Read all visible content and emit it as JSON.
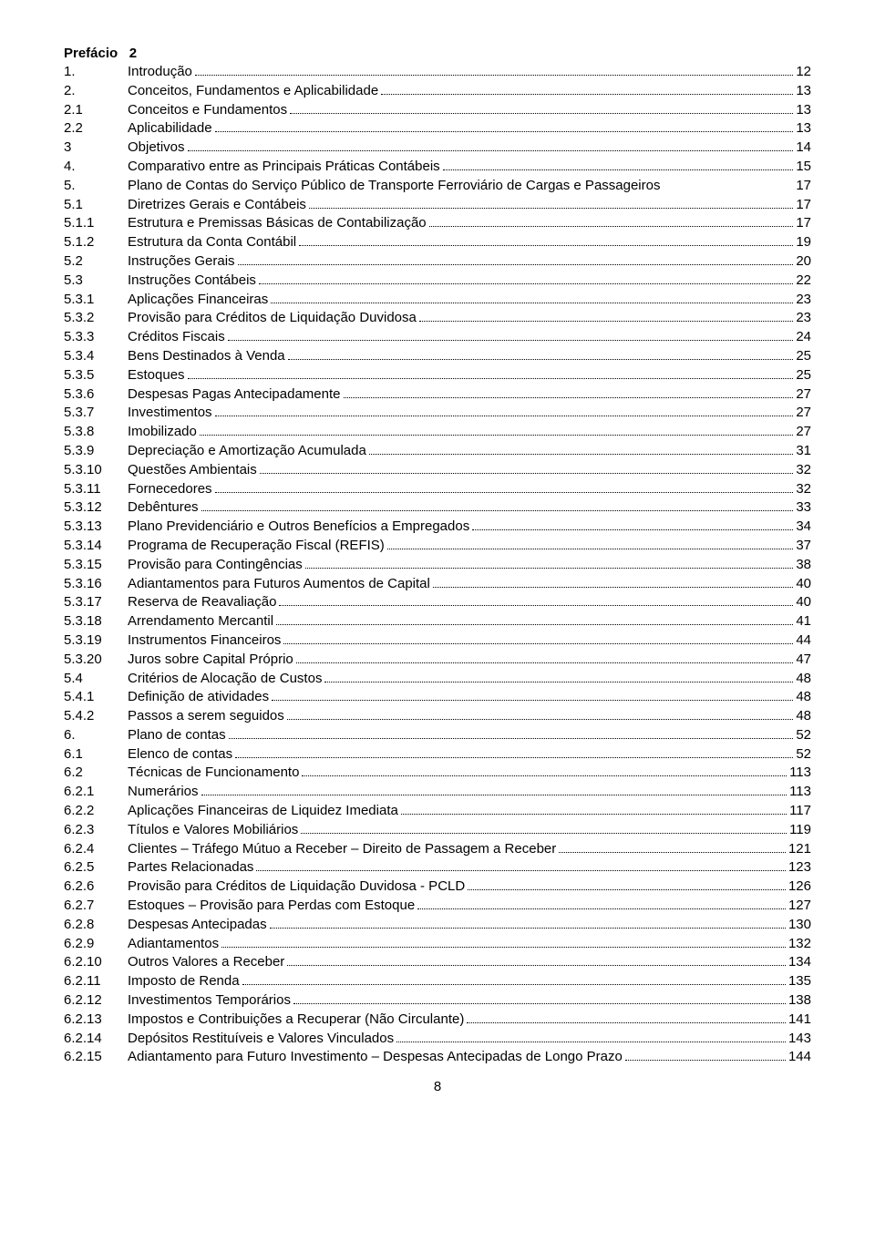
{
  "preface": {
    "label": "Prefácio",
    "page": "2"
  },
  "entries": [
    {
      "num": "1.",
      "title": "Introdução",
      "page": "12"
    },
    {
      "num": "2.",
      "title": "Conceitos, Fundamentos e Aplicabilidade",
      "page": "13"
    },
    {
      "num": "2.1",
      "title": "Conceitos e Fundamentos",
      "page": "13"
    },
    {
      "num": "2.2",
      "title": "Aplicabilidade",
      "page": "13"
    },
    {
      "num": "3",
      "title": "Objetivos",
      "page": "14"
    },
    {
      "num": "4.",
      "title": "Comparativo entre as Principais Práticas Contábeis",
      "page": "15"
    },
    {
      "num": "5.",
      "title": "Plano de Contas do Serviço Público de Transporte Ferroviário de Cargas e Passageiros",
      "page": "17",
      "nodots": true
    },
    {
      "num": "5.1",
      "title": "Diretrizes Gerais e Contábeis",
      "page": "17"
    },
    {
      "num": "5.1.1",
      "title": "Estrutura e Premissas Básicas de Contabilização",
      "page": "17"
    },
    {
      "num": "5.1.2",
      "title": "Estrutura da Conta Contábil",
      "page": "19"
    },
    {
      "num": "5.2",
      "title": "Instruções Gerais",
      "page": "20"
    },
    {
      "num": "5.3",
      "title": "Instruções Contábeis",
      "page": "22"
    },
    {
      "num": "5.3.1",
      "title": "Aplicações Financeiras",
      "page": "23"
    },
    {
      "num": "5.3.2",
      "title": "Provisão para Créditos de Liquidação Duvidosa",
      "page": "23"
    },
    {
      "num": "5.3.3",
      "title": "Créditos Fiscais",
      "page": "24"
    },
    {
      "num": "5.3.4",
      "title": "Bens Destinados à Venda",
      "page": "25"
    },
    {
      "num": "5.3.5",
      "title": "Estoques",
      "page": "25"
    },
    {
      "num": "5.3.6",
      "title": "Despesas Pagas Antecipadamente",
      "page": "27"
    },
    {
      "num": "5.3.7",
      "title": "Investimentos",
      "page": "27"
    },
    {
      "num": "5.3.8",
      "title": "Imobilizado",
      "page": "27"
    },
    {
      "num": "5.3.9",
      "title": "Depreciação e Amortização Acumulada",
      "page": "31"
    },
    {
      "num": "5.3.10",
      "title": "Questões Ambientais",
      "page": "32"
    },
    {
      "num": "5.3.11",
      "title": "Fornecedores",
      "page": "32"
    },
    {
      "num": "5.3.12",
      "title": "Debêntures",
      "page": "33"
    },
    {
      "num": "5.3.13",
      "title": "Plano Previdenciário e Outros Benefícios a Empregados",
      "page": "34"
    },
    {
      "num": "5.3.14",
      "title": "Programa de Recuperação Fiscal (REFIS)",
      "page": "37"
    },
    {
      "num": "5.3.15",
      "title": "Provisão para Contingências",
      "page": "38"
    },
    {
      "num": "5.3.16",
      "title": "Adiantamentos para Futuros Aumentos de Capital",
      "page": "40"
    },
    {
      "num": "5.3.17",
      "title": "Reserva de Reavaliação",
      "page": "40"
    },
    {
      "num": "5.3.18",
      "title": "Arrendamento Mercantil",
      "page": "41"
    },
    {
      "num": "5.3.19",
      "title": "Instrumentos Financeiros",
      "page": "44"
    },
    {
      "num": "5.3.20",
      "title": "Juros sobre Capital Próprio",
      "page": "47"
    },
    {
      "num": "5.4",
      "title": "Critérios de Alocação de Custos",
      "page": "48"
    },
    {
      "num": "5.4.1",
      "title": "Definição de atividades",
      "page": "48"
    },
    {
      "num": "5.4.2",
      "title": "Passos a serem seguidos",
      "page": "48"
    },
    {
      "num": "6.",
      "title": "Plano de contas",
      "page": "52"
    },
    {
      "num": "6.1",
      "title": "Elenco de contas",
      "page": "52"
    },
    {
      "num": "6.2",
      "title": "Técnicas de Funcionamento",
      "page": "113"
    },
    {
      "num": "6.2.1",
      "title": "Numerários",
      "page": "113"
    },
    {
      "num": "6.2.2",
      "title": "Aplicações Financeiras de Liquidez Imediata",
      "page": "117"
    },
    {
      "num": "6.2.3",
      "title": "Títulos e Valores Mobiliários",
      "page": "119"
    },
    {
      "num": "6.2.4",
      "title": "Clientes – Tráfego Mútuo a Receber – Direito de Passagem a Receber",
      "page": "121"
    },
    {
      "num": "6.2.5",
      "title": "Partes Relacionadas",
      "page": "123"
    },
    {
      "num": "6.2.6",
      "title": "Provisão para Créditos de Liquidação Duvidosa - PCLD",
      "page": "126"
    },
    {
      "num": "6.2.7",
      "title": "Estoques – Provisão para Perdas com Estoque",
      "page": "127"
    },
    {
      "num": "6.2.8",
      "title": "Despesas Antecipadas",
      "page": "130"
    },
    {
      "num": "6.2.9",
      "title": "Adiantamentos",
      "page": "132"
    },
    {
      "num": "6.2.10",
      "title": "Outros Valores a Receber",
      "page": "134"
    },
    {
      "num": "6.2.11",
      "title": "Imposto de Renda",
      "page": "135"
    },
    {
      "num": "6.2.12",
      "title": "Investimentos Temporários",
      "page": "138"
    },
    {
      "num": "6.2.13",
      "title": "Impostos e Contribuições a Recuperar (Não Circulante)",
      "page": "141"
    },
    {
      "num": "6.2.14",
      "title": "Depósitos Restituíveis e Valores Vinculados",
      "page": "143"
    },
    {
      "num": "6.2.15",
      "title": "Adiantamento para Futuro Investimento – Despesas Antecipadas de Longo Prazo",
      "page": "144"
    }
  ],
  "page_number": "8"
}
